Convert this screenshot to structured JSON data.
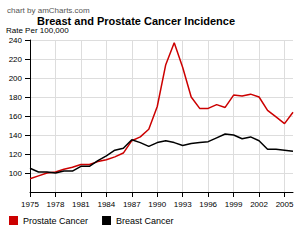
{
  "chart_data": {
    "type": "line",
    "title": "Breast and Prostate Cancer Incidence",
    "annotations": [
      "chart by amCharts.com"
    ],
    "y_label": "Rate Per 100,000",
    "x": [
      1975,
      1976,
      1977,
      1978,
      1979,
      1980,
      1981,
      1982,
      1983,
      1984,
      1985,
      1986,
      1987,
      1988,
      1989,
      1990,
      1991,
      1992,
      1993,
      1994,
      1995,
      1996,
      1997,
      1998,
      1999,
      2000,
      2001,
      2002,
      2003,
      2004,
      2005,
      2006
    ],
    "series": [
      {
        "name": "Prostate Cancer",
        "color": "#cc0000",
        "values": [
          94,
          97,
          100,
          101,
          104,
          106,
          109,
          109,
          112,
          114,
          117,
          121,
          134,
          138,
          146,
          170,
          214,
          237,
          211,
          180,
          168,
          168,
          172,
          169,
          182,
          181,
          183,
          180,
          166,
          159,
          152,
          164
        ]
      },
      {
        "name": "Breast Cancer",
        "color": "#000000",
        "values": [
          105,
          101,
          101,
          100,
          102,
          102,
          107,
          107,
          113,
          118,
          124,
          126,
          135,
          132,
          128,
          132,
          134,
          132,
          129,
          131,
          132,
          133,
          137,
          141,
          140,
          136,
          138,
          134,
          125,
          125,
          124,
          123
        ]
      }
    ],
    "xlim": [
      1975,
      2006
    ],
    "xticks": [
      1975,
      1978,
      1981,
      1984,
      1987,
      1990,
      1993,
      1996,
      1999,
      2002,
      2005
    ],
    "ylim": [
      80,
      240
    ],
    "yticks": [
      100,
      120,
      140,
      160,
      180,
      200,
      220,
      240
    ],
    "grid": true,
    "legend": "bottom-left"
  }
}
